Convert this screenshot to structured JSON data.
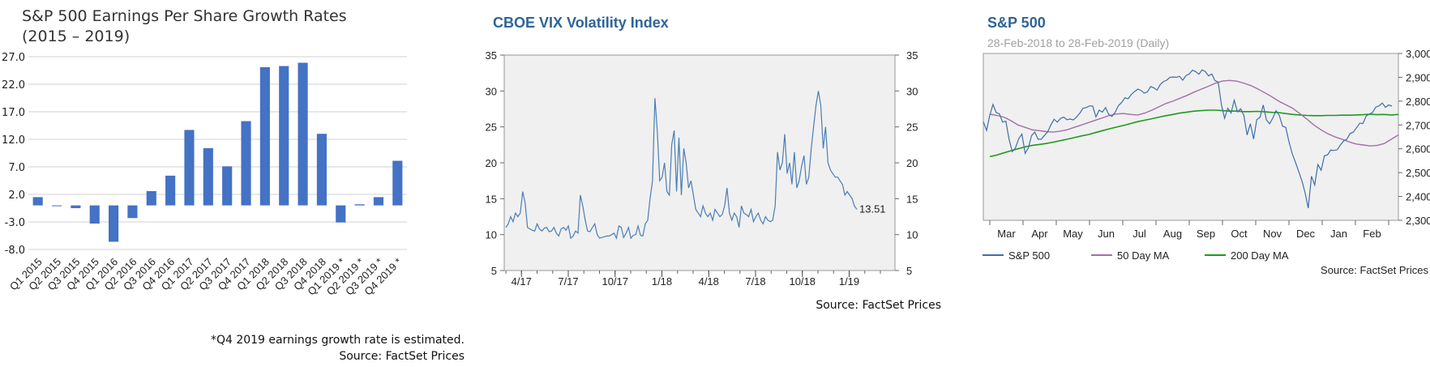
{
  "colors": {
    "eps_bar": "#4472C4",
    "vix_line": "#4A7EB5",
    "spx_line": "#3E6FA8",
    "ma50": "#A070A8",
    "ma200": "#1E9A1E",
    "plot_bg": "#F0F0F0"
  },
  "eps": {
    "title_line1": "S&P 500 Earnings Per Share Growth Rates",
    "title_line2": "(2015 – 2019)",
    "footnote": "*Q4 2019 earnings growth rate is estimated.",
    "source": "Source: FactSet Prices"
  },
  "vix": {
    "title": "CBOE VIX Volatility Index",
    "last_value_label": "13.51",
    "source": "Source: FactSet Prices"
  },
  "spx": {
    "title": "S&P 500",
    "subtitle": "28-Feb-2018 to 28-Feb-2019 (Daily)",
    "source": "Source: FactSet Prices"
  },
  "chart_data": [
    {
      "type": "bar",
      "title": "S&P 500 Earnings Per Share Growth Rates (2015 – 2019)",
      "categories": [
        "Q1 2015",
        "Q2 2015",
        "Q3 2015",
        "Q4 2015",
        "Q1 2016",
        "Q2 2016",
        "Q3 2016",
        "Q4 2016",
        "Q1 2017",
        "Q2 2017",
        "Q3 2017",
        "Q4 2017",
        "Q1 2018",
        "Q2 2018",
        "Q3 2018",
        "Q4 2018",
        "Q1 2019 *",
        "Q2 2019 *",
        "Q3 2019 *",
        "Q4 2019 *"
      ],
      "values": [
        1.5,
        0.0,
        -0.5,
        -3.3,
        -6.6,
        -2.3,
        2.6,
        5.4,
        13.7,
        10.4,
        7.1,
        15.3,
        25.1,
        25.3,
        25.9,
        13.0,
        -3.1,
        0.2,
        1.5,
        8.1
      ],
      "yticks": [
        "27.0",
        "22.0",
        "17.0",
        "12.0",
        "7.0",
        "2.0",
        "-3.0",
        "-8.0"
      ],
      "ylim": [
        -8,
        27
      ],
      "grid": true
    },
    {
      "type": "line",
      "title": "CBOE VIX Volatility Index",
      "xticks": [
        "4/17",
        "7/17",
        "10/17",
        "1/18",
        "4/18",
        "7/18",
        "10/18",
        "1/19"
      ],
      "yticks": [
        "5",
        "10",
        "15",
        "20",
        "25",
        "30",
        "35"
      ],
      "ylim": [
        5,
        35
      ],
      "last_value": 13.51,
      "series": [
        {
          "values": [
            11.0,
            11.5,
            12.5,
            11.8,
            13.0,
            12.5,
            13.0,
            16.0,
            14.5,
            11.0,
            10.8,
            10.6,
            10.5,
            11.5,
            10.8,
            10.5,
            10.9,
            11.0,
            10.4,
            10.5,
            11.0,
            10.2,
            9.8,
            10.8,
            11.0,
            10.6,
            11.2,
            9.5,
            9.8,
            10.5,
            10.2,
            15.5,
            14.0,
            12.0,
            10.5,
            10.4,
            11.0,
            11.5,
            10.0,
            9.5,
            9.6,
            9.7,
            9.8,
            9.8,
            10.0,
            10.2,
            9.5,
            11.2,
            11.0,
            9.6,
            10.2,
            11.0,
            9.5,
            9.9,
            10.0,
            11.2,
            9.9,
            9.8,
            11.5,
            12.0,
            15.0,
            17.5,
            29.0,
            24.5,
            17.5,
            18.0,
            20.0,
            16.0,
            15.5,
            22.5,
            24.5,
            16.0,
            23.5,
            15.5,
            22.0,
            20.0,
            16.5,
            17.5,
            15.5,
            13.5,
            13.0,
            12.5,
            14.0,
            13.0,
            12.5,
            13.0,
            12.0,
            13.5,
            13.0,
            12.5,
            12.8,
            14.0,
            16.5,
            13.0,
            12.0,
            13.0,
            12.5,
            11.0,
            14.0,
            13.0,
            12.8,
            12.5,
            13.5,
            11.8,
            12.5,
            13.0,
            12.0,
            11.5,
            12.5,
            12.0,
            11.8,
            12.0,
            14.0,
            21.5,
            19.0,
            20.0,
            24.0,
            18.5,
            20.0,
            17.0,
            21.5,
            16.5,
            17.5,
            19.5,
            21.0,
            17.0,
            18.0,
            22.0,
            25.0,
            28.0,
            30.0,
            28.0,
            22.0,
            25.0,
            20.0,
            19.0,
            18.5,
            18.0,
            18.0,
            17.5,
            17.0,
            15.5,
            16.0,
            15.5,
            15.0,
            14.0,
            13.51
          ]
        }
      ]
    },
    {
      "type": "line",
      "title": "S&P 500",
      "subtitle": "28-Feb-2018 to 28-Feb-2019 (Daily)",
      "xticks": [
        "Mar",
        "Apr",
        "May",
        "Jun",
        "Jul",
        "Aug",
        "Sep",
        "Oct",
        "Nov",
        "Dec",
        "Jan",
        "Feb"
      ],
      "yticks": [
        "3,000",
        "2,900",
        "2,800",
        "2,700",
        "2,600",
        "2,500",
        "2,400",
        "2,300"
      ],
      "ylim": [
        2300,
        3000
      ],
      "legend_position": "bottom",
      "series": [
        {
          "name": "S&P 500",
          "values": [
            2714,
            2677,
            2740,
            2786,
            2752,
            2747,
            2712,
            2716,
            2640,
            2588,
            2604,
            2643,
            2662,
            2581,
            2604,
            2655,
            2670,
            2640,
            2640,
            2656,
            2671,
            2700,
            2724,
            2712,
            2727,
            2733,
            2722,
            2725,
            2721,
            2734,
            2750,
            2770,
            2773,
            2780,
            2779,
            2734,
            2762,
            2754,
            2773,
            2743,
            2736,
            2754,
            2781,
            2794,
            2814,
            2810,
            2828,
            2840,
            2850,
            2845,
            2833,
            2839,
            2861,
            2856,
            2846,
            2870,
            2882,
            2888,
            2900,
            2901,
            2900,
            2904,
            2888,
            2907,
            2914,
            2930,
            2924,
            2913,
            2931,
            2924,
            2906,
            2914,
            2886,
            2880,
            2785,
            2728,
            2770,
            2750,
            2804,
            2755,
            2768,
            2740,
            2658,
            2705,
            2641,
            2722,
            2732,
            2784,
            2721,
            2705,
            2730,
            2760,
            2740,
            2695,
            2690,
            2630,
            2580,
            2545,
            2506,
            2467,
            2416,
            2351,
            2485,
            2448,
            2534,
            2510,
            2570,
            2575,
            2595,
            2593,
            2596,
            2616,
            2633,
            2640,
            2664,
            2670,
            2688,
            2707,
            2706,
            2738,
            2745,
            2753,
            2775,
            2780,
            2792,
            2774,
            2784,
            2779
          ]
        },
        {
          "name": "50 Day MA",
          "values": [
            2745,
            2740,
            2733,
            2718,
            2700,
            2690,
            2680,
            2676,
            2672,
            2670,
            2674,
            2680,
            2690,
            2700,
            2710,
            2720,
            2730,
            2740,
            2746,
            2748,
            2744,
            2742,
            2750,
            2762,
            2776,
            2790,
            2800,
            2812,
            2824,
            2838,
            2850,
            2862,
            2875,
            2884,
            2887,
            2884,
            2876,
            2866,
            2852,
            2836,
            2819,
            2800,
            2785,
            2770,
            2748,
            2725,
            2700,
            2680,
            2663,
            2650,
            2640,
            2629,
            2620,
            2616,
            2612,
            2614,
            2622,
            2640,
            2658
          ]
        },
        {
          "name": "200 Day MA",
          "values": [
            2567,
            2574,
            2583,
            2592,
            2600,
            2608,
            2614,
            2618,
            2622,
            2628,
            2634,
            2640,
            2647,
            2654,
            2660,
            2668,
            2676,
            2684,
            2691,
            2698,
            2706,
            2714,
            2720,
            2726,
            2733,
            2739,
            2744,
            2750,
            2754,
            2758,
            2760,
            2762,
            2762,
            2760,
            2758,
            2758,
            2756,
            2756,
            2757,
            2755,
            2753,
            2752,
            2748,
            2744,
            2742,
            2740,
            2739,
            2739,
            2740,
            2740,
            2741,
            2741,
            2742,
            2743,
            2745,
            2743,
            2744,
            2742,
            2744
          ]
        }
      ]
    }
  ]
}
